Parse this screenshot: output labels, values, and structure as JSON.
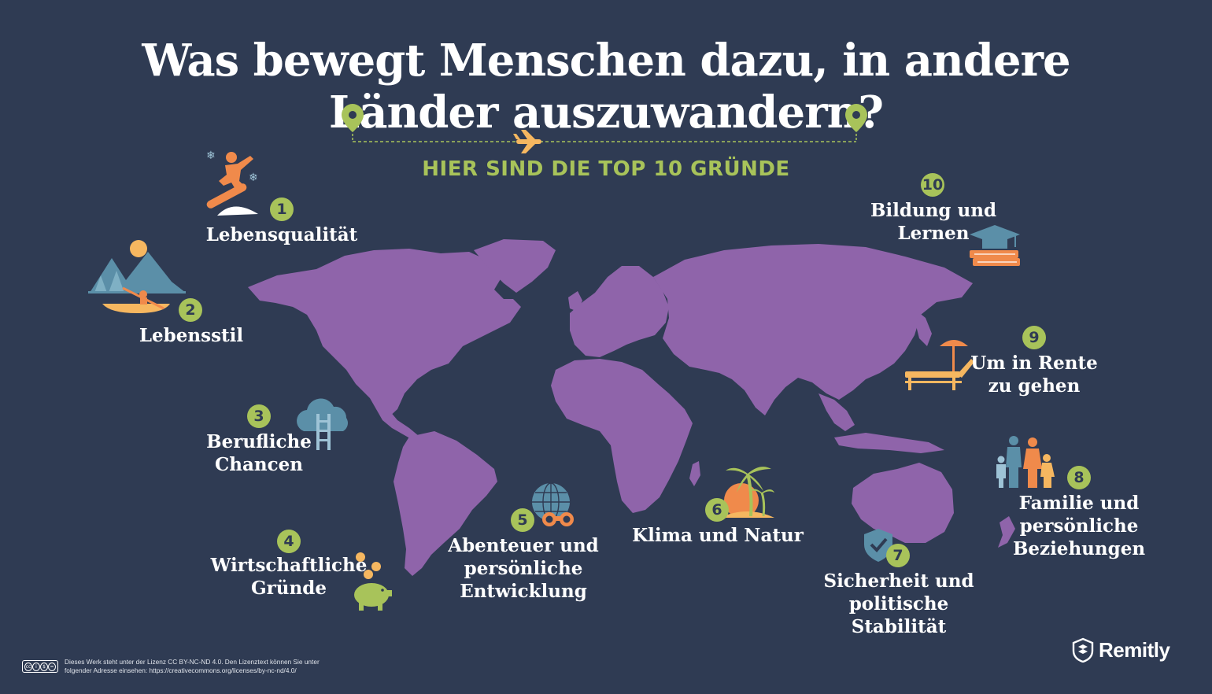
{
  "header": {
    "title_line1": "Was bewegt Menschen dazu, in andere",
    "title_line2": "Länder auszuwandern?",
    "subtitle": "HIER SIND DIE TOP 10 GRÜNDE"
  },
  "colors": {
    "background": "#2f3b53",
    "map": "#8f64aa",
    "accent_green": "#a8c35a",
    "icon_orange": "#f08a4b",
    "icon_yellow": "#f6b760",
    "icon_blue": "#5b8fa8"
  },
  "reasons": [
    {
      "number": "1",
      "lines": [
        "Lebensqualität"
      ],
      "icon": "snowboarder-icon"
    },
    {
      "number": "2",
      "lines": [
        "Lebensstil"
      ],
      "icon": "kayak-mountains-icon"
    },
    {
      "number": "3",
      "lines": [
        "Berufliche",
        "Chancen"
      ],
      "icon": "cloud-ladder-icon"
    },
    {
      "number": "4",
      "lines": [
        "Wirtschaftliche",
        "Gründe"
      ],
      "icon": "piggy-bank-icon"
    },
    {
      "number": "5",
      "lines": [
        "Abenteuer und",
        "persönliche",
        "Entwicklung"
      ],
      "icon": "globe-binoculars-icon"
    },
    {
      "number": "6",
      "lines": [
        "Klima und Natur"
      ],
      "icon": "palm-island-icon"
    },
    {
      "number": "7",
      "lines": [
        "Sicherheit und",
        "politische",
        "Stabilität"
      ],
      "icon": "shield-check-icon"
    },
    {
      "number": "8",
      "lines": [
        "Familie und",
        "persönliche",
        "Beziehungen"
      ],
      "icon": "family-icon"
    },
    {
      "number": "9",
      "lines": [
        "Um in Rente",
        "zu gehen"
      ],
      "icon": "sunlounger-icon"
    },
    {
      "number": "10",
      "lines": [
        "Bildung und",
        "Lernen"
      ],
      "icon": "graduation-books-icon"
    }
  ],
  "footer": {
    "cc_label": "CC BY NC ND",
    "license_line1": "Dieses Werk steht unter der Lizenz CC BY-NC-ND 4.0. Den Lizenztext können Sie unter",
    "license_line2": "folgender Adresse einsehen: https://creativecommons.org/licenses/by-nc-nd/4.0/",
    "brand": "Remitly"
  }
}
